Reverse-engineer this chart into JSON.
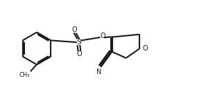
{
  "bg_color": "#ffffff",
  "line_color": "#1a1a1a",
  "line_width": 1.5,
  "figsize": [
    2.84,
    1.46
  ],
  "dpi": 100,
  "xlim": [
    0,
    2.84
  ],
  "ylim": [
    0,
    1.46
  ]
}
